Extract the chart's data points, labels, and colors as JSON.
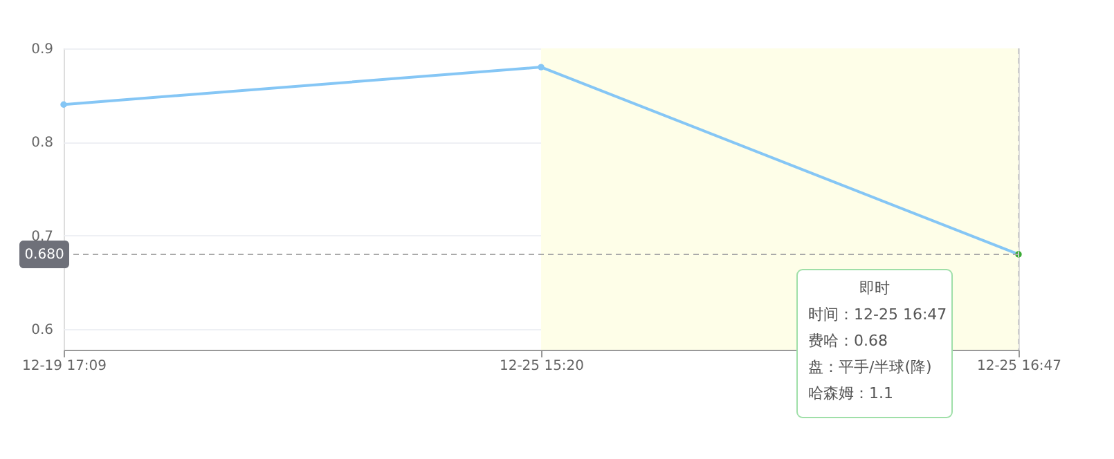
{
  "chart_data": {
    "type": "line",
    "categories": [
      "12-19 17:09",
      "12-25 15:20",
      "12-25 16:47"
    ],
    "series": [
      {
        "color": "#85c6f5",
        "colors": [
          "#85c6f5",
          "#85c6f5",
          "#3aaa35"
        ],
        "values": [
          0.84,
          0.88,
          0.68
        ]
      }
    ],
    "ylim": [
      0.578,
      0.9
    ],
    "yticks": [
      0.6,
      0.7,
      0.8,
      0.9
    ],
    "grid": "y",
    "marker": "circle",
    "line_style": "solid",
    "bands": [
      {
        "axis": "x",
        "from": "12-25 15:20",
        "to": "12-25 16:47",
        "color": "#fefee8"
      }
    ],
    "ref_lines": [
      {
        "axis": "y",
        "value": 0.68,
        "label": "0.680",
        "color": "#aaaaaa",
        "line_style": "dashed"
      },
      {
        "axis": "x",
        "value": "12-25 16:47",
        "color": "#cccccc",
        "line_style": "dashed"
      }
    ],
    "annotations": [
      "即时",
      "时间：12-25 16:47",
      "费哈：0.68",
      "盘：平手/半球(降)",
      "哈森姆：1.1"
    ]
  }
}
